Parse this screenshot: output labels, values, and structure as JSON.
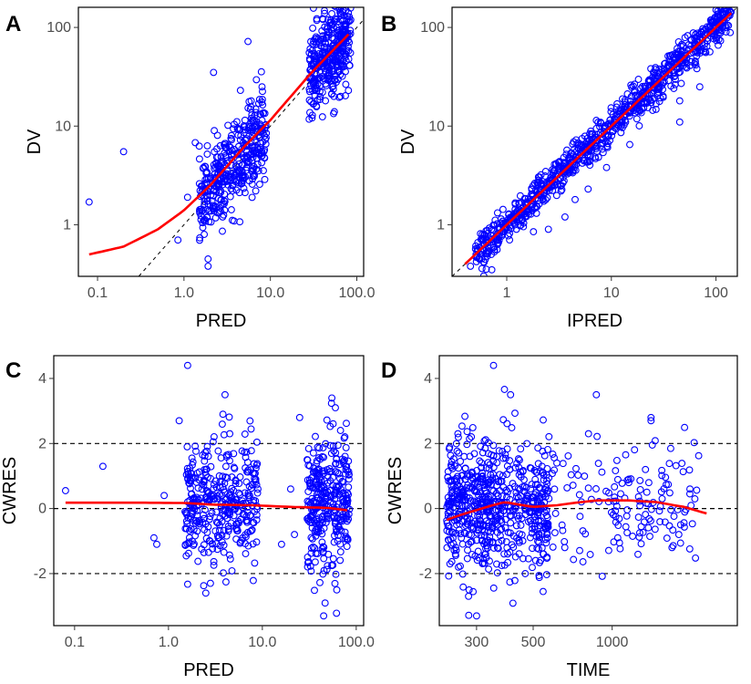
{
  "colors": {
    "points": "#0000ff",
    "smooth": "#ff0000",
    "reference": "#000000",
    "background": "#ffffff"
  },
  "chart_data": [
    {
      "type": "scatter",
      "panel": "A",
      "xlabel": "PRED",
      "ylabel": "DV",
      "xscale": "log",
      "yscale": "log",
      "xlim": [
        0.06,
        120
      ],
      "ylim": [
        0.3,
        160
      ],
      "xticks": [
        0.1,
        1,
        10,
        100
      ],
      "xtick_labels": [
        "0.1",
        "1.0",
        "10.0",
        "100.0"
      ],
      "yticks": [
        1,
        10,
        100
      ],
      "ytick_labels": [
        "1",
        "10",
        "100"
      ],
      "reference": "identity",
      "grid": false,
      "points_approx": [
        [
          0.08,
          1.7
        ],
        [
          0.2,
          5.5
        ],
        [
          0.85,
          0.7
        ],
        [
          1.1,
          1.9
        ],
        [
          1.35,
          6.8
        ],
        [
          1.9,
          0.45
        ],
        [
          1.9,
          0.38
        ],
        [
          2.2,
          35
        ],
        [
          4.5,
          23
        ],
        [
          5.5,
          72
        ],
        [
          6,
          18
        ],
        [
          8,
          25
        ],
        [
          8.5,
          4.8
        ],
        [
          3.5,
          7.5
        ],
        [
          3.2,
          3.5
        ],
        [
          3.8,
          5.2
        ],
        [
          2.8,
          1.2
        ],
        [
          4.2,
          9.5
        ],
        [
          2.5,
          2.5
        ],
        [
          3.0,
          6.1
        ],
        [
          40,
          22
        ],
        [
          55,
          14
        ],
        [
          65,
          120
        ],
        [
          70,
          150
        ],
        [
          50,
          60
        ],
        [
          60,
          45
        ],
        [
          45,
          80
        ],
        [
          35,
          30
        ],
        [
          75,
          90
        ],
        [
          68,
          32
        ],
        [
          58,
          100
        ],
        [
          38,
          50
        ],
        [
          62,
          70
        ],
        [
          47,
          40
        ],
        [
          72,
          55
        ],
        [
          52,
          25
        ]
      ],
      "cluster_low": {
        "x_range": [
          1.5,
          9
        ],
        "count": 380
      },
      "cluster_high": {
        "x_range": [
          28,
          85
        ],
        "count": 340
      },
      "smooth": [
        [
          0.08,
          0.5
        ],
        [
          0.2,
          0.6
        ],
        [
          0.5,
          0.9
        ],
        [
          1.0,
          1.4
        ],
        [
          2.0,
          2.5
        ],
        [
          5.0,
          6.2
        ],
        [
          10,
          11.5
        ],
        [
          30,
          35
        ],
        [
          80,
          85
        ]
      ]
    },
    {
      "type": "scatter",
      "panel": "B",
      "xlabel": "IPRED",
      "ylabel": "DV",
      "xscale": "log",
      "yscale": "log",
      "xlim": [
        0.3,
        160
      ],
      "ylim": [
        0.3,
        160
      ],
      "xticks": [
        1,
        10,
        100
      ],
      "xtick_labels": [
        "1",
        "10",
        "100"
      ],
      "yticks": [
        1,
        10,
        100
      ],
      "ytick_labels": [
        "1",
        "10",
        "100"
      ],
      "reference": "identity",
      "grid": false,
      "points_approx": [
        [
          0.45,
          0.38
        ],
        [
          0.6,
          0.42
        ],
        [
          0.72,
          0.35
        ],
        [
          0.65,
          0.48
        ],
        [
          2.5,
          0.9
        ],
        [
          3.6,
          1.2
        ],
        [
          1.8,
          0.85
        ],
        [
          4.5,
          1.8
        ],
        [
          6.0,
          2.3
        ],
        [
          9,
          3.8
        ],
        [
          15,
          6.5
        ],
        [
          45,
          18
        ],
        [
          45,
          11
        ],
        [
          70,
          25
        ],
        [
          12,
          13.5
        ],
        [
          20,
          22
        ],
        [
          100,
          150
        ],
        [
          110,
          160
        ],
        [
          55,
          60
        ]
      ],
      "band": {
        "x_range": [
          0.5,
          140
        ],
        "count": 900,
        "spread_log10": 0.09
      },
      "smooth": [
        [
          0.4,
          0.4
        ],
        [
          1,
          1
        ],
        [
          10,
          10
        ],
        [
          100,
          100
        ],
        [
          140,
          140
        ]
      ]
    },
    {
      "type": "scatter",
      "panel": "C",
      "xlabel": "PRED",
      "ylabel": "CWRES",
      "xscale": "log",
      "yscale": "linear",
      "xlim": [
        0.06,
        120
      ],
      "ylim": [
        -3.6,
        4.7
      ],
      "xticks": [
        0.1,
        1,
        10,
        100
      ],
      "xtick_labels": [
        "0.1",
        "1.0",
        "10.0",
        "100.0"
      ],
      "yticks": [
        -2,
        0,
        2,
        4
      ],
      "ytick_labels": [
        "-2",
        "0",
        "2",
        "4"
      ],
      "hlines": [
        -2,
        0,
        2
      ],
      "grid": false,
      "points_approx": [
        [
          0.08,
          0.55
        ],
        [
          0.2,
          1.3
        ],
        [
          0.7,
          -0.9
        ],
        [
          0.75,
          -1.1
        ],
        [
          0.9,
          0.4
        ],
        [
          1.3,
          2.7
        ],
        [
          1.6,
          4.4
        ],
        [
          4.0,
          3.5
        ],
        [
          3.8,
          2.9
        ],
        [
          4.5,
          2.3
        ],
        [
          2.5,
          -2.6
        ],
        [
          2.8,
          -2.3
        ],
        [
          25,
          2.8
        ],
        [
          30,
          1.5
        ],
        [
          45,
          -3.3
        ],
        [
          55,
          3.4
        ],
        [
          60,
          3.1
        ],
        [
          68,
          2.4
        ],
        [
          62,
          -2.5
        ],
        [
          35,
          0.2
        ],
        [
          40,
          -0.5
        ],
        [
          50,
          1.0
        ],
        [
          20,
          0.6
        ],
        [
          22,
          -0.8
        ],
        [
          16,
          -1.1
        ]
      ],
      "cluster_low": {
        "x_range": [
          1.5,
          9
        ],
        "count": 360
      },
      "cluster_high": {
        "x_range": [
          30,
          85
        ],
        "count": 320
      },
      "smooth": [
        [
          0.08,
          0.18
        ],
        [
          0.5,
          0.18
        ],
        [
          1.5,
          0.17
        ],
        [
          3,
          0.12
        ],
        [
          8,
          0.1
        ],
        [
          20,
          0.05
        ],
        [
          50,
          0.02
        ],
        [
          80,
          -0.05
        ]
      ]
    },
    {
      "type": "scatter",
      "panel": "D",
      "xlabel": "TIME",
      "ylabel": "CWRES",
      "xscale": "nonlinear",
      "yscale": "linear",
      "xlim": [
        200,
        3200
      ],
      "ylim": [
        -3.6,
        4.7
      ],
      "xticks": [
        300,
        500,
        1000
      ],
      "xtick_labels": [
        "300",
        "500",
        "1000"
      ],
      "yticks": [
        -2,
        0,
        2,
        4
      ],
      "ytick_labels": [
        "-2",
        "0",
        "2",
        "4"
      ],
      "hlines": [
        -2,
        0,
        2
      ],
      "grid": false,
      "points_approx": [
        [
          300,
          -3.3
        ],
        [
          360,
          4.4
        ],
        [
          420,
          3.5
        ],
        [
          900,
          3.5
        ],
        [
          1700,
          2.8
        ],
        [
          1700,
          2.7
        ],
        [
          850,
          2.3
        ],
        [
          2400,
          0.6
        ],
        [
          2200,
          -0.8
        ],
        [
          1900,
          0.3
        ],
        [
          1600,
          1.2
        ],
        [
          1300,
          0.9
        ],
        [
          1100,
          -0.9
        ],
        [
          700,
          -1.2
        ],
        [
          650,
          1.4
        ],
        [
          250,
          2.3
        ],
        [
          280,
          -2.5
        ]
      ],
      "band": {
        "x_range": [
          220,
          600
        ],
        "count": 650
      },
      "sparse": {
        "x_range": [
          620,
          2600
        ],
        "count": 140
      },
      "smooth": [
        [
          220,
          -0.35
        ],
        [
          300,
          -0.05
        ],
        [
          400,
          0.2
        ],
        [
          500,
          0.05
        ],
        [
          650,
          0.1
        ],
        [
          900,
          0.25
        ],
        [
          1300,
          0.25
        ],
        [
          1800,
          0.2
        ],
        [
          2300,
          0.05
        ],
        [
          2700,
          -0.15
        ]
      ]
    }
  ]
}
